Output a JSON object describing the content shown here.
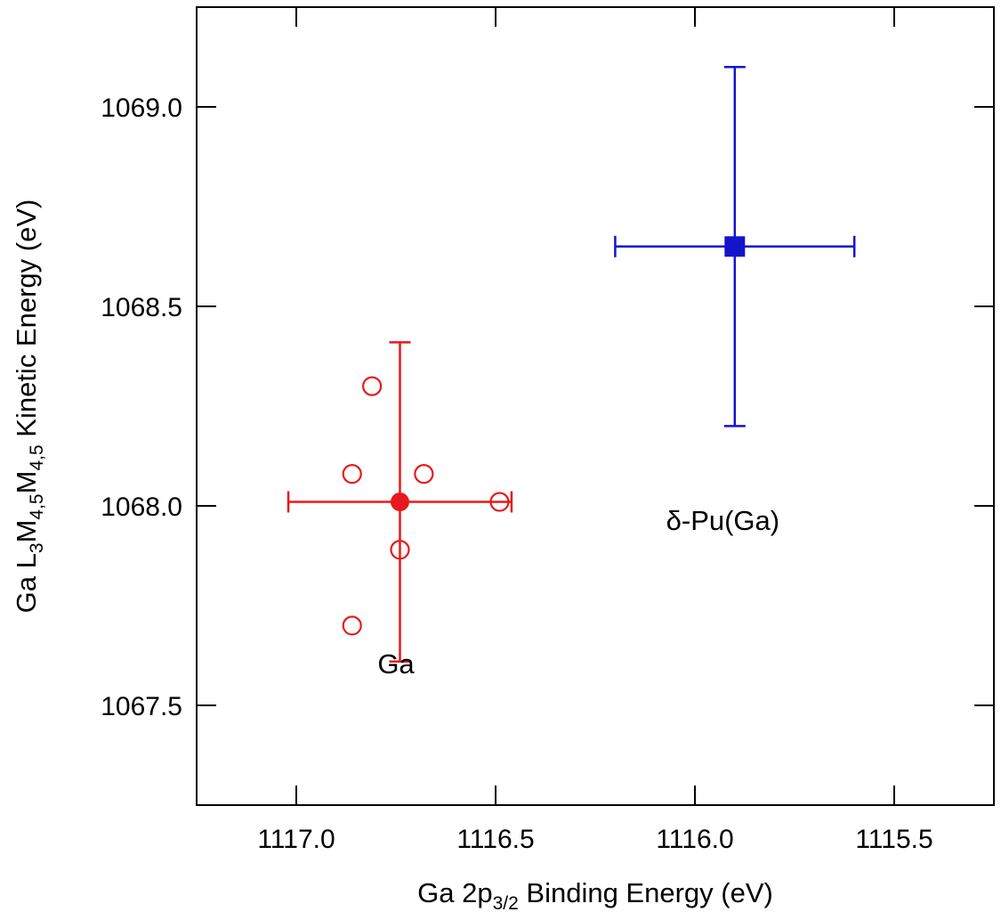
{
  "chart_data": {
    "type": "scatter",
    "title": "",
    "xlabel": {
      "parts": [
        {
          "text": "Ga 2p",
          "sub": false
        },
        {
          "text": "3/2",
          "sub": true
        },
        {
          "text": " Binding Energy (eV)",
          "sub": false
        }
      ]
    },
    "ylabel": {
      "parts": [
        {
          "text": "Ga L",
          "sub": false
        },
        {
          "text": "3",
          "sub": true
        },
        {
          "text": "M",
          "sub": false
        },
        {
          "text": "4,5",
          "sub": true
        },
        {
          "text": "M",
          "sub": false
        },
        {
          "text": "4,5",
          "sub": true
        },
        {
          "text": " Kinetic Energy (eV)",
          "sub": false
        }
      ]
    },
    "xlim": [
      1117.25,
      1115.25
    ],
    "ylim": [
      1067.25,
      1069.25
    ],
    "x_reversed": true,
    "xticks": [
      {
        "value": 1117.0,
        "label": "1117.0"
      },
      {
        "value": 1116.5,
        "label": "1116.5"
      },
      {
        "value": 1116.0,
        "label": "1116.0"
      },
      {
        "value": 1115.5,
        "label": "1115.5"
      }
    ],
    "yticks": [
      {
        "value": 1067.5,
        "label": "1067.5"
      },
      {
        "value": 1068.0,
        "label": "1068.0"
      },
      {
        "value": 1068.5,
        "label": "1068.5"
      },
      {
        "value": 1069.0,
        "label": "1069.0"
      }
    ],
    "grid": false,
    "series": [
      {
        "color": "#e8191c",
        "marker": "open-circle",
        "points": [
          {
            "x": 1116.81,
            "y": 1068.3
          },
          {
            "x": 1116.86,
            "y": 1068.08
          },
          {
            "x": 1116.68,
            "y": 1068.08
          },
          {
            "x": 1116.49,
            "y": 1068.01
          },
          {
            "x": 1116.74,
            "y": 1067.89
          },
          {
            "x": 1116.86,
            "y": 1067.7
          }
        ]
      },
      {
        "color": "#e8191c",
        "marker": "filled-circle",
        "points": [
          {
            "x": 1116.74,
            "y": 1068.01,
            "xerr": 0.28,
            "yerr": 0.4
          }
        ]
      },
      {
        "color": "#1414cc",
        "marker": "filled-square",
        "points": [
          {
            "x": 1115.9,
            "y": 1068.65,
            "xerr": 0.3,
            "yerr": 0.45
          }
        ]
      }
    ],
    "annotations": [
      {
        "text": "Ga",
        "x": 1116.75,
        "y": 1067.58
      },
      {
        "text": "δ-Pu(Ga)",
        "x": 1115.93,
        "y": 1067.94
      }
    ]
  }
}
